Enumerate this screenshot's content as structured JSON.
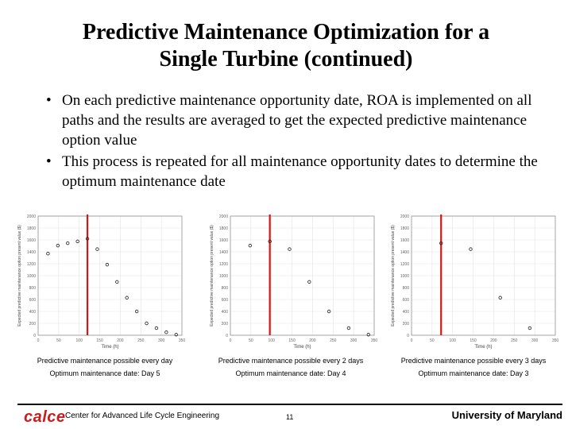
{
  "slide": {
    "title_line1": "Predictive Maintenance Optimization for a",
    "title_line2": "Single Turbine (continued)",
    "bullet_char": "•",
    "bullets": [
      "On each predictive maintenance opportunity date, ROA is implemented on all paths and the results are averaged to get the expected predictive maintenance option value",
      "This process is repeated for all maintenance opportunity dates to determine the optimum maintenance date"
    ]
  },
  "chart_data": [
    {
      "type": "scatter",
      "xlabel": "Time (h)",
      "ylabel": "Expected predictive maintenance option present value ($)",
      "xlim": [
        0,
        350
      ],
      "ylim": [
        0,
        2000
      ],
      "xticks": [
        0,
        50,
        100,
        150,
        200,
        250,
        300,
        350
      ],
      "yticks": [
        0,
        200,
        400,
        600,
        800,
        1000,
        1200,
        1400,
        1600,
        1800,
        2000
      ],
      "x": [
        24,
        48,
        72,
        96,
        120,
        144,
        168,
        192,
        216,
        240,
        264,
        288,
        312,
        336
      ],
      "values": [
        1370,
        1505,
        1545,
        1575,
        1620,
        1445,
        1185,
        895,
        630,
        400,
        200,
        120,
        50,
        10
      ],
      "optimum_x": 120,
      "caption_line1": "Predictive maintenance possible every day",
      "caption_line2": "Optimum maintenance date: Day 5"
    },
    {
      "type": "scatter",
      "xlabel": "Time (h)",
      "ylabel": "Expected predictive maintenance option present value ($)",
      "xlim": [
        0,
        350
      ],
      "ylim": [
        0,
        2000
      ],
      "xticks": [
        0,
        50,
        100,
        150,
        200,
        250,
        300,
        350
      ],
      "yticks": [
        0,
        200,
        400,
        600,
        800,
        1000,
        1200,
        1400,
        1600,
        1800,
        2000
      ],
      "x": [
        48,
        96,
        144,
        192,
        240,
        288,
        336
      ],
      "values": [
        1505,
        1575,
        1445,
        895,
        400,
        120,
        10
      ],
      "optimum_x": 96,
      "caption_line1": "Predictive maintenance possible every 2 days",
      "caption_line2": "Optimum maintenance date: Day 4"
    },
    {
      "type": "scatter",
      "xlabel": "Time (h)",
      "ylabel": "Expected predictive maintenance option present value ($)",
      "xlim": [
        0,
        350
      ],
      "ylim": [
        0,
        2000
      ],
      "xticks": [
        0,
        50,
        100,
        150,
        200,
        250,
        300,
        350
      ],
      "yticks": [
        0,
        200,
        400,
        600,
        800,
        1000,
        1200,
        1400,
        1600,
        1800,
        2000
      ],
      "x": [
        72,
        144,
        216,
        288
      ],
      "values": [
        1545,
        1445,
        630,
        120
      ],
      "optimum_x": 72,
      "caption_line1": "Predictive maintenance possible every 3 days",
      "caption_line2": "Optimum maintenance date: Day 3"
    }
  ],
  "footer": {
    "logo_text": "calce",
    "center_name": "Center for Advanced Life Cycle Engineering",
    "page_number": "11",
    "university": "University of Maryland"
  },
  "colors": {
    "optimum_line": "#d01818",
    "logo": "#c81e1e"
  }
}
